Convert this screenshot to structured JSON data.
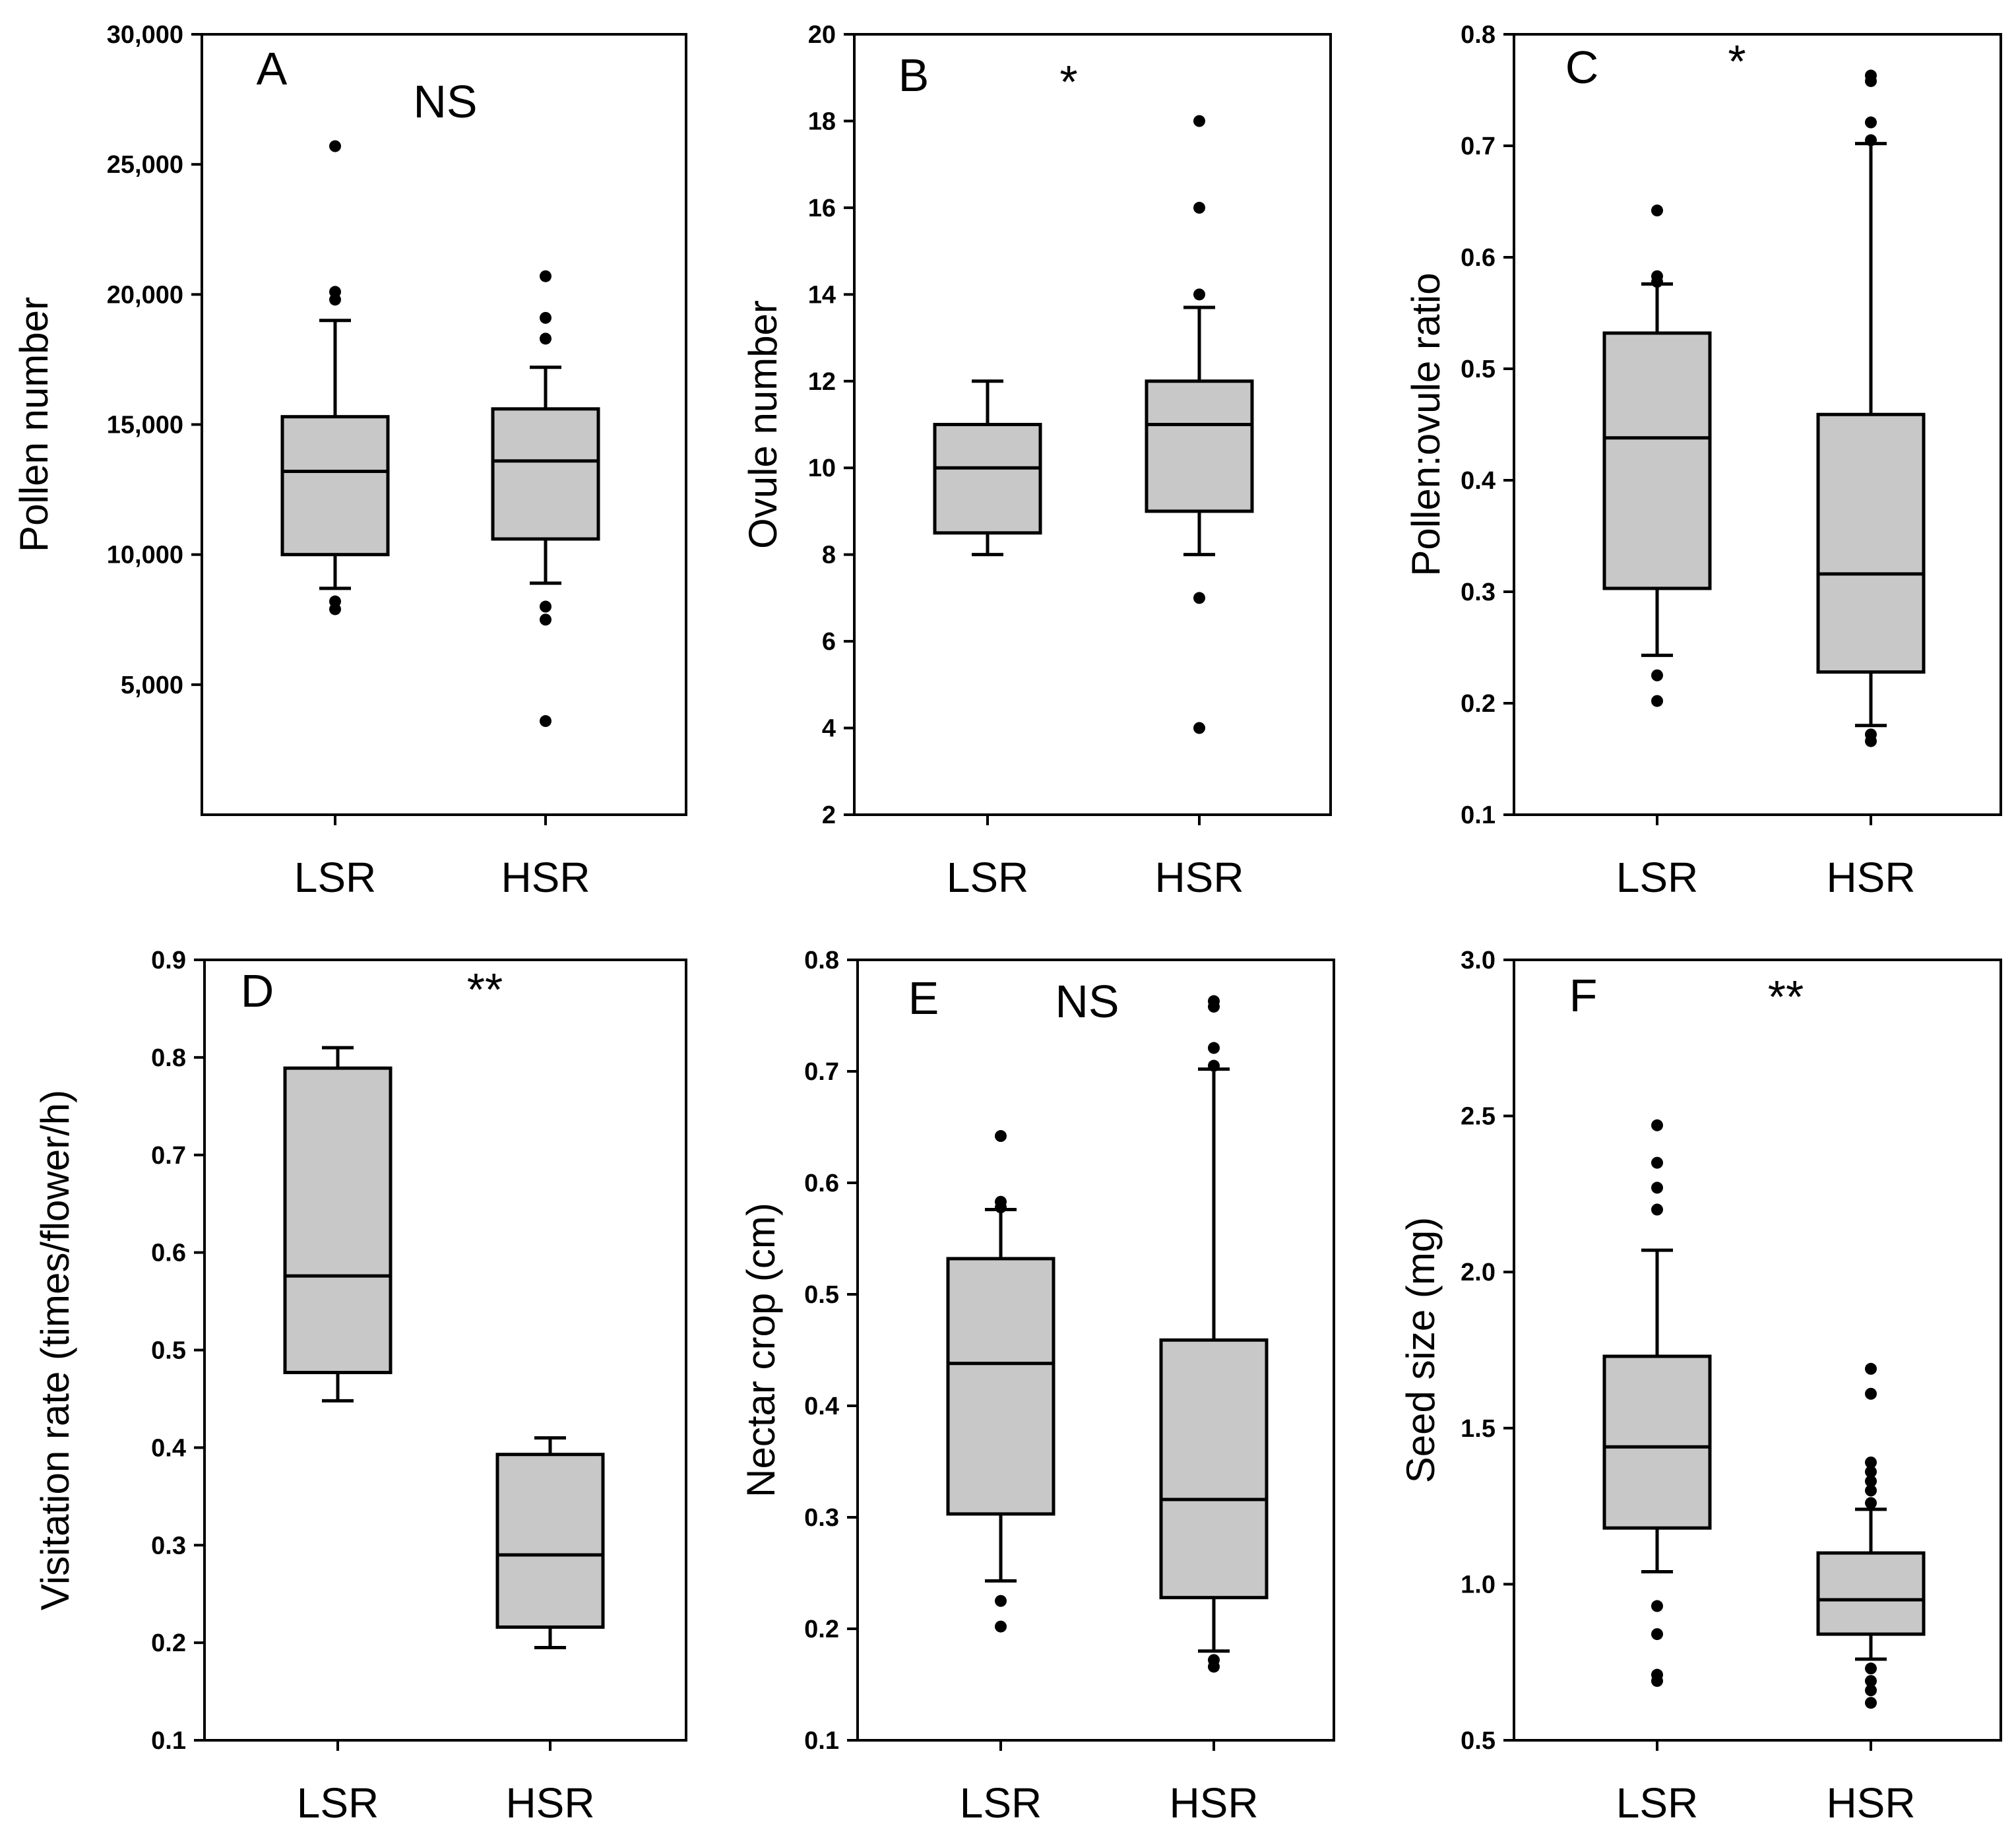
{
  "colors": {
    "box_fill": "#c8c8c8",
    "stroke": "#000000",
    "background": "#ffffff"
  },
  "chart_data": [
    {
      "type": "box",
      "panel": "A",
      "significance": "NS",
      "ylabel": "Pollen number",
      "ylim": [
        0,
        30000
      ],
      "yticks": [
        5000,
        10000,
        15000,
        20000,
        25000,
        30000
      ],
      "ytick_labels": [
        "5,000",
        "10,000",
        "15,000",
        "20,000",
        "25,000",
        "30,000"
      ],
      "categories": [
        "LSR",
        "HSR"
      ],
      "boxes": [
        {
          "whisker_low": 8700,
          "q1": 10000,
          "median": 13200,
          "q3": 15300,
          "whisker_high": 19000,
          "outliers": [
            25700,
            20100,
            19800,
            8200,
            7900
          ]
        },
        {
          "whisker_low": 8900,
          "q1": 10600,
          "median": 13600,
          "q3": 15600,
          "whisker_high": 17200,
          "outliers": [
            20700,
            19100,
            18300,
            8000,
            7500,
            3600
          ]
        }
      ]
    },
    {
      "type": "box",
      "panel": "B",
      "significance": "*",
      "ylabel": "Ovule number",
      "ylim": [
        2,
        20
      ],
      "yticks": [
        2,
        4,
        6,
        8,
        10,
        12,
        14,
        16,
        18,
        20
      ],
      "ytick_labels": [
        "2",
        "4",
        "6",
        "8",
        "10",
        "12",
        "14",
        "16",
        "18",
        "20"
      ],
      "categories": [
        "LSR",
        "HSR"
      ],
      "boxes": [
        {
          "whisker_low": 8,
          "q1": 8.5,
          "median": 10,
          "q3": 11,
          "whisker_high": 12,
          "outliers": []
        },
        {
          "whisker_low": 8,
          "q1": 9,
          "median": 11,
          "q3": 12,
          "whisker_high": 13.7,
          "outliers": [
            18,
            16,
            14,
            7,
            4
          ]
        }
      ]
    },
    {
      "type": "box",
      "panel": "C",
      "significance": "*",
      "ylabel": "Pollen:ovule ratio",
      "ylim": [
        0.1,
        0.8
      ],
      "yticks": [
        0.1,
        0.2,
        0.3,
        0.4,
        0.5,
        0.6,
        0.7,
        0.8
      ],
      "ytick_labels": [
        "0.1",
        "0.2",
        "0.3",
        "0.4",
        "0.5",
        "0.6",
        "0.7",
        "0.8"
      ],
      "categories": [
        "LSR",
        "HSR"
      ],
      "boxes": [
        {
          "whisker_low": 0.243,
          "q1": 0.303,
          "median": 0.438,
          "q3": 0.532,
          "whisker_high": 0.576,
          "outliers": [
            0.642,
            0.583,
            0.578,
            0.225,
            0.202
          ]
        },
        {
          "whisker_low": 0.18,
          "q1": 0.228,
          "median": 0.316,
          "q3": 0.459,
          "whisker_high": 0.702,
          "outliers": [
            0.763,
            0.758,
            0.721,
            0.705,
            0.172,
            0.166
          ]
        }
      ]
    },
    {
      "type": "box",
      "panel": "D",
      "significance": "**",
      "ylabel": "Visitation rate (times/flower/h)",
      "ylim": [
        0.1,
        0.9
      ],
      "yticks": [
        0.1,
        0.2,
        0.3,
        0.4,
        0.5,
        0.6,
        0.7,
        0.8,
        0.9
      ],
      "ytick_labels": [
        "0.1",
        "0.2",
        "0.3",
        "0.4",
        "0.5",
        "0.6",
        "0.7",
        "0.8",
        "0.9"
      ],
      "categories": [
        "LSR",
        "HSR"
      ],
      "boxes": [
        {
          "whisker_low": 0.448,
          "q1": 0.477,
          "median": 0.576,
          "q3": 0.789,
          "whisker_high": 0.81,
          "outliers": []
        },
        {
          "whisker_low": 0.195,
          "q1": 0.216,
          "median": 0.29,
          "q3": 0.393,
          "whisker_high": 0.41,
          "outliers": []
        }
      ]
    },
    {
      "type": "box",
      "panel": "E",
      "significance": "NS",
      "ylabel": "Nectar crop (cm)",
      "ylim": [
        0.1,
        0.8
      ],
      "yticks": [
        0.1,
        0.2,
        0.3,
        0.4,
        0.5,
        0.6,
        0.7,
        0.8
      ],
      "ytick_labels": [
        "0.1",
        "0.2",
        "0.3",
        "0.4",
        "0.5",
        "0.6",
        "0.7",
        "0.8"
      ],
      "categories": [
        "LSR",
        "HSR"
      ],
      "boxes": [
        {
          "whisker_low": 0.243,
          "q1": 0.303,
          "median": 0.438,
          "q3": 0.532,
          "whisker_high": 0.576,
          "outliers": [
            0.642,
            0.583,
            0.578,
            0.225,
            0.202
          ]
        },
        {
          "whisker_low": 0.18,
          "q1": 0.228,
          "median": 0.316,
          "q3": 0.459,
          "whisker_high": 0.702,
          "outliers": [
            0.763,
            0.758,
            0.721,
            0.705,
            0.172,
            0.166
          ]
        }
      ]
    },
    {
      "type": "box",
      "panel": "F",
      "significance": "**",
      "ylabel": "Seed size (mg)",
      "ylim": [
        0.5,
        3.0
      ],
      "yticks": [
        0.5,
        1.0,
        1.5,
        2.0,
        2.5,
        3.0
      ],
      "ytick_labels": [
        "0.5",
        "1.0",
        "1.5",
        "2.0",
        "2.5",
        "3.0"
      ],
      "categories": [
        "LSR",
        "HSR"
      ],
      "boxes": [
        {
          "whisker_low": 1.04,
          "q1": 1.18,
          "median": 1.44,
          "q3": 1.73,
          "whisker_high": 2.07,
          "outliers": [
            2.47,
            2.35,
            2.27,
            2.2,
            0.93,
            0.84,
            0.71,
            0.69
          ]
        },
        {
          "whisker_low": 0.76,
          "q1": 0.84,
          "median": 0.95,
          "q3": 1.1,
          "whisker_high": 1.24,
          "outliers": [
            1.69,
            1.61,
            1.39,
            1.36,
            1.33,
            1.3,
            1.26,
            0.73,
            0.69,
            0.66,
            0.62
          ]
        }
      ]
    }
  ]
}
